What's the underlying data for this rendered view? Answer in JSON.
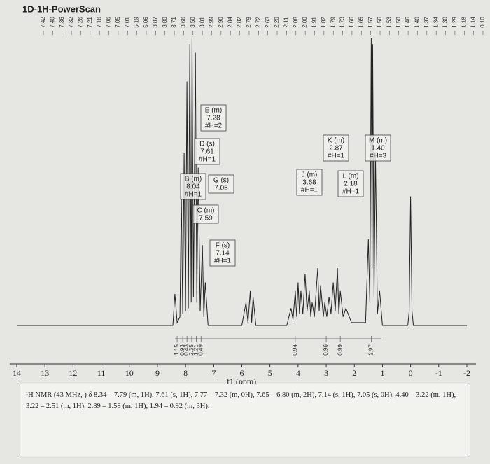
{
  "chart_data": {
    "type": "line",
    "title": "1D-1H-PowerScan",
    "xlabel": "f1 (ppm)",
    "xlim": [
      14,
      -2
    ],
    "xticks": [
      14,
      13,
      12,
      11,
      10,
      9,
      8,
      7,
      6,
      5,
      4,
      3,
      2,
      1,
      0,
      -1,
      -2
    ],
    "ylim": [
      0,
      100
    ],
    "color": "#222222",
    "x": [
      14,
      9.5,
      8.45,
      8.38,
      8.3,
      8.2,
      8.15,
      8.1,
      8.05,
      8.0,
      7.95,
      7.9,
      7.85,
      7.8,
      7.77,
      7.72,
      7.65,
      7.6,
      7.55,
      7.48,
      7.4,
      7.35,
      7.3,
      7.2,
      6.0,
      5.85,
      5.78,
      5.7,
      5.65,
      5.6,
      5.5,
      4.4,
      4.25,
      4.18,
      4.1,
      4.05,
      4.0,
      3.95,
      3.9,
      3.83,
      3.75,
      3.68,
      3.6,
      3.55,
      3.5,
      3.42,
      3.3,
      3.25,
      3.2,
      3.1,
      3.05,
      2.98,
      2.9,
      2.83,
      2.75,
      2.68,
      2.6,
      2.55,
      2.5,
      2.4,
      2.3,
      2.1,
      1.6,
      1.5,
      1.45,
      1.4,
      1.37,
      1.35,
      1.3,
      1.25,
      1.18,
      1.1,
      1.0,
      0.1,
      0.05,
      0,
      -0.05,
      -0.1,
      -2
    ],
    "values": [
      0,
      0,
      0,
      11,
      1,
      3,
      45,
      4,
      60,
      5,
      85,
      6,
      98,
      8,
      100,
      10,
      95,
      8,
      55,
      5,
      28,
      3,
      15,
      0,
      0,
      8,
      1,
      12,
      1,
      10,
      0,
      0,
      6,
      2,
      12,
      3,
      15,
      4,
      12,
      4,
      18,
      5,
      12,
      3,
      8,
      3,
      20,
      5,
      14,
      3,
      8,
      3,
      10,
      4,
      15,
      5,
      20,
      4,
      12,
      3,
      6,
      1,
      1,
      30,
      8,
      100,
      20,
      98,
      10,
      60,
      4,
      12,
      0,
      0,
      5,
      45,
      5,
      0,
      0
    ],
    "peak_labels": [
      "7.42",
      "7.40",
      "7.36",
      "7.32",
      "7.26",
      "7.21",
      "7.16",
      "7.06",
      "7.05",
      "7.01",
      "5.19",
      "5.06",
      "3.87",
      "3.80",
      "3.71",
      "3.66",
      "3.50",
      "3.01",
      "2.99",
      "2.90",
      "2.84",
      "2.82",
      "2.79",
      "2.72",
      "2.63",
      "2.20",
      "2.11",
      "2.08",
      "2.00",
      "1.91",
      "1.82",
      "1.79",
      "1.73",
      "1.66",
      "1.65",
      "1.57",
      "1.56",
      "1.53",
      "1.50",
      "1.46",
      "1.40",
      "1.37",
      "1.34",
      "1.30",
      "1.29",
      "1.18",
      "1.14",
      "0.10"
    ],
    "integrals": {
      "x": [
        8.3,
        8.1,
        7.95,
        7.78,
        7.62,
        7.45,
        4.1,
        3.0,
        2.5,
        1.4
      ],
      "values": [
        1.15,
        0.93,
        0.43,
        2.35,
        1.21,
        0.49,
        0.94,
        0.96,
        0.99,
        2.97
      ]
    },
    "multiplets": [
      {
        "lines": [
          "B (m)",
          "8.04",
          "#H=1"
        ]
      },
      {
        "lines": [
          "C (m)",
          "7.59"
        ]
      },
      {
        "lines": [
          "D (s)",
          "7.61",
          "#H=1"
        ]
      },
      {
        "lines": [
          "E (m)",
          "7.28",
          "#H=2"
        ]
      },
      {
        "lines": [
          "F (s)",
          "7.14",
          "#H=1"
        ]
      },
      {
        "lines": [
          "G (s)",
          "7.05"
        ]
      },
      {
        "lines": [
          "J (m)",
          "3.68",
          "#H=1"
        ]
      },
      {
        "lines": [
          "K (m)",
          "2.87",
          "#H=1"
        ]
      },
      {
        "lines": [
          "L (m)",
          "2.18",
          "#H=1"
        ]
      },
      {
        "lines": [
          "M (m)",
          "1.40",
          "#H=3"
        ]
      }
    ]
  },
  "note": "¹H NMR (43 MHz, ) δ 8.34 – 7.79 (m, 1H), 7.61 (s, 1H), 7.77 – 7.32 (m, 0H), 7.65 – 6.80 (m, 2H), 7.14 (s, 1H), 7.05 (s, 0H), 4.40 – 3.22 (m, 1H), 3.22 – 2.51 (m, 1H), 2.89 – 1.58 (m, 1H), 1.94 – 0.92 (m, 3H)."
}
